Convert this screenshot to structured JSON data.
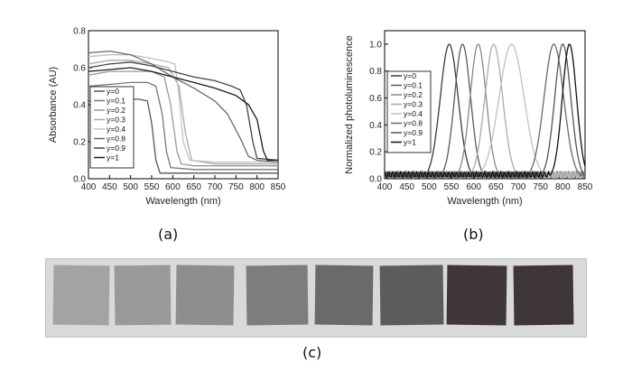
{
  "chart_data": [
    {
      "type": "line",
      "panel": "(a)",
      "xlabel": "Wavelength (nm)",
      "ylabel": "Absorbance (AU)",
      "xlim": [
        400,
        850
      ],
      "ylim": [
        0.0,
        0.8
      ],
      "xticks": [
        400,
        450,
        500,
        550,
        600,
        650,
        700,
        750,
        800,
        850
      ],
      "yticks": [
        0.0,
        0.2,
        0.4,
        0.6,
        0.8
      ],
      "yticklabels": [
        "0.0",
        "0.2",
        "0.4",
        "0.6",
        "0.8"
      ],
      "grid": false,
      "legend": "lower-left",
      "series": [
        {
          "name": "y=0",
          "color": "#555555",
          "points": [
            [
              400,
              0.42
            ],
            [
              450,
              0.43
            ],
            [
              500,
              0.43
            ],
            [
              520,
              0.43
            ],
            [
              540,
              0.42
            ],
            [
              550,
              0.3
            ],
            [
              560,
              0.1
            ],
            [
              570,
              0.03
            ],
            [
              600,
              0.03
            ],
            [
              650,
              0.03
            ],
            [
              700,
              0.03
            ],
            [
              750,
              0.03
            ],
            [
              800,
              0.03
            ],
            [
              850,
              0.03
            ]
          ]
        },
        {
          "name": "y=0.1",
          "color": "#777777",
          "points": [
            [
              400,
              0.5
            ],
            [
              450,
              0.51
            ],
            [
              500,
              0.52
            ],
            [
              540,
              0.52
            ],
            [
              560,
              0.5
            ],
            [
              575,
              0.35
            ],
            [
              585,
              0.15
            ],
            [
              595,
              0.06
            ],
            [
              650,
              0.05
            ],
            [
              700,
              0.05
            ],
            [
              750,
              0.05
            ],
            [
              800,
              0.05
            ],
            [
              850,
              0.05
            ]
          ]
        },
        {
          "name": "y=0.2",
          "color": "#999999",
          "points": [
            [
              400,
              0.56
            ],
            [
              450,
              0.58
            ],
            [
              500,
              0.58
            ],
            [
              550,
              0.58
            ],
            [
              580,
              0.55
            ],
            [
              595,
              0.4
            ],
            [
              610,
              0.15
            ],
            [
              620,
              0.08
            ],
            [
              650,
              0.07
            ],
            [
              700,
              0.07
            ],
            [
              750,
              0.07
            ],
            [
              800,
              0.07
            ],
            [
              850,
              0.07
            ]
          ]
        },
        {
          "name": "y=0.3",
          "color": "#aaaaaa",
          "points": [
            [
              400,
              0.62
            ],
            [
              450,
              0.64
            ],
            [
              500,
              0.64
            ],
            [
              550,
              0.62
            ],
            [
              590,
              0.6
            ],
            [
              615,
              0.5
            ],
            [
              630,
              0.25
            ],
            [
              645,
              0.1
            ],
            [
              700,
              0.08
            ],
            [
              750,
              0.08
            ],
            [
              800,
              0.08
            ],
            [
              850,
              0.08
            ]
          ]
        },
        {
          "name": "y=0.4",
          "color": "#c2c2c2",
          "points": [
            [
              400,
              0.66
            ],
            [
              450,
              0.67
            ],
            [
              500,
              0.67
            ],
            [
              550,
              0.65
            ],
            [
              590,
              0.63
            ],
            [
              605,
              0.62
            ],
            [
              615,
              0.45
            ],
            [
              625,
              0.2
            ],
            [
              640,
              0.1
            ],
            [
              700,
              0.09
            ],
            [
              750,
              0.09
            ],
            [
              800,
              0.09
            ],
            [
              850,
              0.09
            ]
          ]
        },
        {
          "name": "y=0.8",
          "color": "#6a6a6a",
          "points": [
            [
              400,
              0.68
            ],
            [
              450,
              0.69
            ],
            [
              500,
              0.67
            ],
            [
              550,
              0.62
            ],
            [
              600,
              0.55
            ],
            [
              650,
              0.49
            ],
            [
              700,
              0.42
            ],
            [
              730,
              0.35
            ],
            [
              760,
              0.22
            ],
            [
              780,
              0.12
            ],
            [
              800,
              0.1
            ],
            [
              850,
              0.09
            ]
          ]
        },
        {
          "name": "y=0.9",
          "color": "#444444",
          "points": [
            [
              400,
              0.6
            ],
            [
              450,
              0.62
            ],
            [
              500,
              0.63
            ],
            [
              550,
              0.61
            ],
            [
              600,
              0.58
            ],
            [
              650,
              0.55
            ],
            [
              700,
              0.53
            ],
            [
              740,
              0.5
            ],
            [
              760,
              0.48
            ],
            [
              775,
              0.4
            ],
            [
              790,
              0.2
            ],
            [
              800,
              0.11
            ],
            [
              850,
              0.1
            ]
          ]
        },
        {
          "name": "y=1",
          "color": "#1a1a1a",
          "points": [
            [
              400,
              0.58
            ],
            [
              450,
              0.59
            ],
            [
              500,
              0.6
            ],
            [
              550,
              0.58
            ],
            [
              600,
              0.55
            ],
            [
              650,
              0.52
            ],
            [
              700,
              0.49
            ],
            [
              750,
              0.45
            ],
            [
              780,
              0.4
            ],
            [
              800,
              0.32
            ],
            [
              815,
              0.15
            ],
            [
              825,
              0.1
            ],
            [
              850,
              0.1
            ]
          ]
        }
      ]
    },
    {
      "type": "line",
      "panel": "(b)",
      "xlabel": "Wavelength (nm)",
      "ylabel": "Normalized photoluminescence",
      "xlim": [
        400,
        850
      ],
      "ylim": [
        0.0,
        1.1
      ],
      "xticks": [
        400,
        450,
        500,
        550,
        600,
        650,
        700,
        750,
        800,
        850
      ],
      "yticks": [
        0.0,
        0.2,
        0.4,
        0.6,
        0.8,
        1.0
      ],
      "yticklabels": [
        "0.0",
        "0.2",
        "0.4",
        "0.6",
        "0.8",
        "1.0"
      ],
      "grid": false,
      "legend": "left",
      "series": [
        {
          "name": "y=0",
          "color": "#3a3a3a",
          "peak": 545,
          "width": 20
        },
        {
          "name": "y=0.1",
          "color": "#5a5a5a",
          "peak": 575,
          "width": 18
        },
        {
          "name": "y=0.2",
          "color": "#888888",
          "peak": 610,
          "width": 18
        },
        {
          "name": "y=0.3",
          "color": "#aaaaaa",
          "peak": 645,
          "width": 20
        },
        {
          "name": "y=0.4",
          "color": "#c0c0c0",
          "peak": 685,
          "width": 28
        },
        {
          "name": "y=0.8",
          "color": "#6a6a6a",
          "peak": 780,
          "width": 22
        },
        {
          "name": "y=0.9",
          "color": "#555555",
          "peak": 800,
          "width": 18
        },
        {
          "name": "y=1",
          "color": "#111111",
          "peak": 815,
          "width": 16
        }
      ]
    }
  ],
  "panel_labels": {
    "a": "(a)",
    "b": "(b)",
    "c": "(c)"
  },
  "photo": {
    "samples": [
      {
        "color": "#a3a3a3"
      },
      {
        "color": "#999999"
      },
      {
        "color": "#8e8e8e"
      },
      {
        "color": "#7d7d7d"
      },
      {
        "color": "#6a6a6a"
      },
      {
        "color": "#5c5c5c"
      },
      {
        "color": "#403838"
      },
      {
        "color": "#3e3636"
      }
    ]
  }
}
